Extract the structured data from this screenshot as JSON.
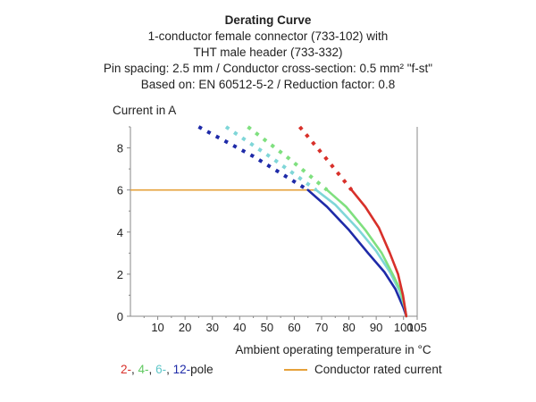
{
  "chart_data": {
    "type": "line",
    "title": "Derating Curve",
    "subtitle_lines": [
      "1-conductor female connector (733-102) with",
      "THT male header (733-332)",
      "Pin spacing: 2.5 mm / Conductor cross-section: 0.5 mm² \"f-st\"",
      "Based on: EN 60512-5-2 / Reduction factor: 0.8"
    ],
    "ylabel": "Current in A",
    "xlabel": "Ambient operating temperature in °C",
    "xlim": [
      0,
      105
    ],
    "ylim": [
      0,
      9
    ],
    "x_ticks": [
      "10",
      "20",
      "30",
      "40",
      "50",
      "60",
      "70",
      "80",
      "90",
      "100",
      "105"
    ],
    "x_tick_values": [
      10,
      20,
      30,
      40,
      50,
      60,
      70,
      80,
      90,
      100,
      105
    ],
    "y_ticks": [
      "0",
      "2",
      "4",
      "6",
      "8"
    ],
    "y_tick_values": [
      0,
      2,
      4,
      6,
      8
    ],
    "grid": false,
    "legend_placement": "bottom",
    "series": [
      {
        "name": "12",
        "color": "#1e2aa8",
        "solid": [
          [
            65,
            6.0
          ],
          [
            72,
            5.2
          ],
          [
            80,
            4.1
          ],
          [
            87,
            3.0
          ],
          [
            93,
            2.1
          ],
          [
            97,
            1.3
          ],
          [
            100,
            0.4
          ],
          [
            101,
            0
          ]
        ],
        "dashed": [
          [
            25,
            9.0
          ],
          [
            45,
            7.6
          ],
          [
            65,
            6.0
          ]
        ]
      },
      {
        "name": "6",
        "color": "#7fd6d8",
        "solid": [
          [
            68,
            6.0
          ],
          [
            75,
            5.3
          ],
          [
            83,
            4.2
          ],
          [
            90,
            3.1
          ],
          [
            95,
            2.1
          ],
          [
            98.5,
            1.2
          ],
          [
            100.5,
            0.4
          ],
          [
            101,
            0
          ]
        ],
        "dashed": [
          [
            35,
            9.0
          ],
          [
            52,
            7.5
          ],
          [
            68,
            6.0
          ]
        ]
      },
      {
        "name": "4",
        "color": "#7fe07f",
        "solid": [
          [
            72,
            6.0
          ],
          [
            79,
            5.2
          ],
          [
            86,
            4.1
          ],
          [
            92,
            3.0
          ],
          [
            96,
            2.0
          ],
          [
            99,
            1.2
          ],
          [
            100.5,
            0.4
          ],
          [
            101,
            0
          ]
        ],
        "dashed": [
          [
            43,
            9.0
          ],
          [
            58,
            7.5
          ],
          [
            72,
            6.0
          ]
        ]
      },
      {
        "name": "2",
        "color": "#d8302a",
        "solid": [
          [
            81,
            6.0
          ],
          [
            86,
            5.2
          ],
          [
            91,
            4.2
          ],
          [
            95,
            3.0
          ],
          [
            98,
            2.0
          ],
          [
            99.8,
            1.0
          ],
          [
            101,
            0
          ]
        ],
        "dashed": [
          [
            62,
            9.0
          ],
          [
            71,
            7.6
          ],
          [
            81,
            6.0
          ]
        ]
      }
    ],
    "rated_current": {
      "name": "Conductor rated current",
      "color": "#e6a13a",
      "value": 6,
      "x_range": [
        0,
        68
      ]
    }
  },
  "legend": {
    "prefix_2": "2-",
    "sep_1": ", ",
    "prefix_4": "4-",
    "sep_2": ", ",
    "prefix_6": "6-",
    "sep_3": ", ",
    "prefix_12": "12-",
    "suffix": "pole",
    "rated_label": "Conductor rated current"
  }
}
